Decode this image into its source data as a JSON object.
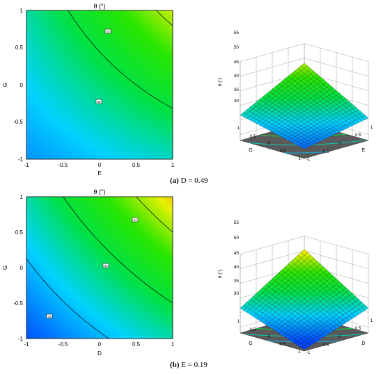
{
  "panels": [
    {
      "caption_prefix": "(a)",
      "caption_text": "D = 0.49",
      "contour_title": "θ (°)",
      "contour_xlabel": "E",
      "contour_ylabel": "G",
      "contour_xticks": [
        "-1",
        "-0.5",
        "0",
        "0.5",
        "1"
      ],
      "contour_yticks": [
        "1",
        "0.5",
        "0",
        "-0.5",
        "-1"
      ],
      "contour_labels": [
        "47",
        "40"
      ],
      "surface_zlabel": "θ (°)",
      "surface_zticks": [
        "55",
        "50",
        "45",
        "40",
        "35",
        "30"
      ],
      "surface_left_axis_label": "G",
      "surface_right_axis_label": "E",
      "surface_left_ticks": [
        "1",
        "0.5",
        "0",
        "-0.5",
        "-1"
      ],
      "surface_right_ticks": [
        "-1",
        "-0.5",
        "0",
        "0.5",
        "1"
      ]
    },
    {
      "caption_prefix": "(b)",
      "caption_text": "E = 0.19",
      "contour_title": "θ (°)",
      "contour_xlabel": "D",
      "contour_ylabel": "G",
      "contour_xticks": [
        "-1",
        "-0.5",
        "0",
        "0.5",
        "1"
      ],
      "contour_yticks": [
        "1",
        "0.5",
        "0",
        "-0.5",
        "-1"
      ],
      "contour_labels": [
        "47",
        "40",
        "33"
      ],
      "surface_zlabel": "θ (°)",
      "surface_zticks": [
        "55",
        "50",
        "45",
        "40",
        "35",
        "30"
      ],
      "surface_left_axis_label": "G",
      "surface_right_axis_label": "D",
      "surface_left_ticks": [
        "1",
        "0.5",
        "0",
        "-0.5",
        "-1"
      ],
      "surface_right_ticks": [
        "-1",
        "-0.5",
        "0",
        "0.5",
        "1"
      ]
    }
  ],
  "chart_data": [
    {
      "type": "heatmap",
      "title": "θ (°)",
      "xlabel": "E",
      "ylabel": "G",
      "xlim": [
        -1,
        1
      ],
      "ylim": [
        -1,
        1
      ],
      "model": {
        "b0": 38,
        "bx": 4.0,
        "by": 4.5,
        "bxy": 1.8
      },
      "contours": [
        40,
        47
      ],
      "color_range": [
        28,
        55
      ]
    },
    {
      "type": "area",
      "title": "",
      "xlabel": "E",
      "ylabel": "G",
      "zlabel": "θ (°)",
      "xlim": [
        -1,
        1
      ],
      "ylim": [
        -1,
        1
      ],
      "zlim": [
        28,
        55
      ],
      "model": {
        "b0": 38,
        "bx": 4.0,
        "by": 4.5,
        "bxy": 1.8
      }
    },
    {
      "type": "heatmap",
      "title": "θ (°)",
      "xlabel": "D",
      "ylabel": "G",
      "xlim": [
        -1,
        1
      ],
      "ylim": [
        -1,
        1
      ],
      "model": {
        "b0": 38,
        "bx": 5.5,
        "by": 5.5,
        "bxy": 1.5
      },
      "contours": [
        33,
        40,
        47
      ],
      "color_range": [
        28,
        55
      ]
    },
    {
      "type": "area",
      "title": "",
      "xlabel": "D",
      "ylabel": "G",
      "zlabel": "θ (°)",
      "xlim": [
        -1,
        1
      ],
      "ylim": [
        -1,
        1
      ],
      "zlim": [
        28,
        55
      ],
      "model": {
        "b0": 38,
        "bx": 5.5,
        "by": 5.5,
        "bxy": 1.5
      }
    }
  ]
}
